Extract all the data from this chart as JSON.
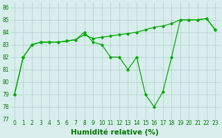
{
  "x": [
    0,
    1,
    2,
    3,
    4,
    5,
    6,
    7,
    8,
    9,
    10,
    11,
    12,
    13,
    14,
    15,
    16,
    17,
    18,
    19,
    20,
    21,
    22,
    23
  ],
  "series1": [
    79.0,
    82.0,
    83.0,
    83.2,
    83.2,
    83.2,
    83.3,
    83.4,
    83.8,
    83.5,
    83.6,
    83.7,
    83.8,
    83.9,
    84.0,
    84.2,
    84.4,
    84.5,
    84.7,
    85.0,
    85.0,
    85.0,
    85.1,
    84.2
  ],
  "series2": [
    79.0,
    82.0,
    83.0,
    83.2,
    83.2,
    83.2,
    83.3,
    83.4,
    84.0,
    83.2,
    83.0,
    82.0,
    82.0,
    81.0,
    82.0,
    79.0,
    78.0,
    79.2,
    82.0,
    85.0,
    85.0,
    85.0,
    85.1,
    84.2
  ],
  "line_color": "#00aa00",
  "bg_color": "#d8eeed",
  "grid_color": "#b0cccc",
  "xlabel": "Humidité relative (%)",
  "xlim": [
    -0.5,
    23.5
  ],
  "ylim": [
    77,
    86.4
  ],
  "yticks": [
    77,
    78,
    79,
    80,
    81,
    82,
    83,
    84,
    85,
    86
  ],
  "xticks": [
    0,
    1,
    2,
    3,
    4,
    5,
    6,
    7,
    8,
    9,
    10,
    11,
    12,
    13,
    14,
    15,
    16,
    17,
    18,
    19,
    20,
    21,
    22,
    23
  ],
  "tick_fontsize": 5.5,
  "xlabel_fontsize": 7.5,
  "tick_color": "#007700"
}
